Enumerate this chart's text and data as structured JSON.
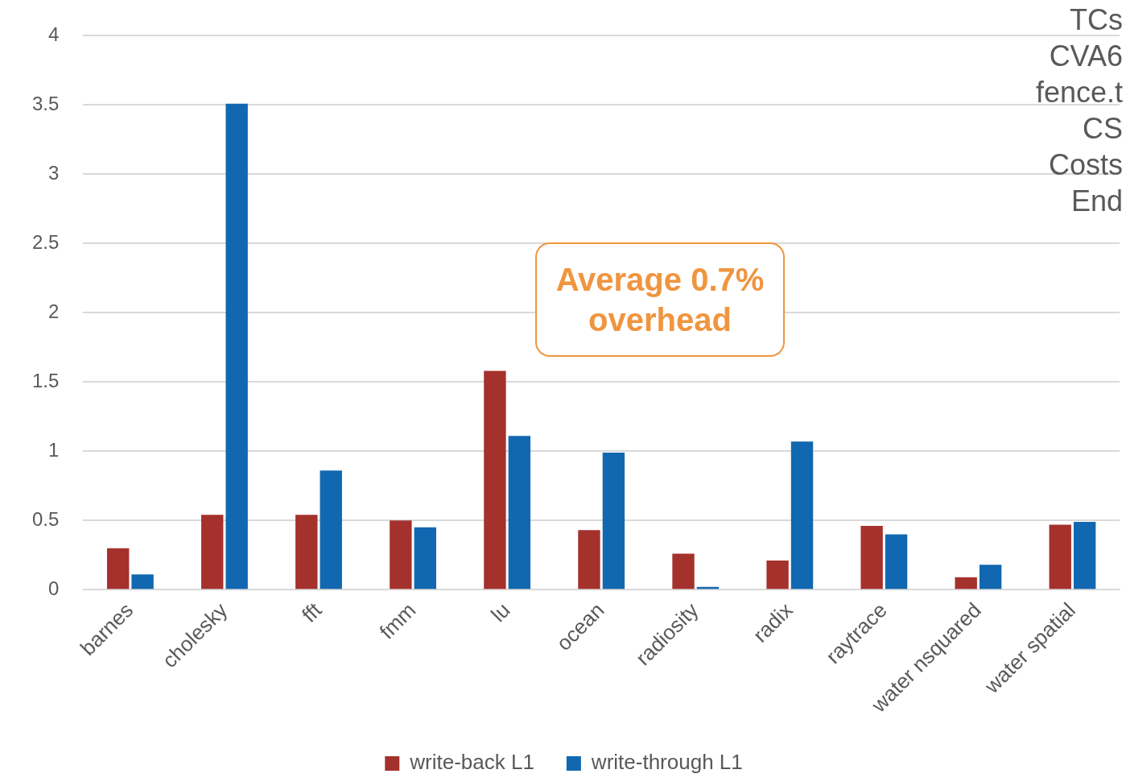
{
  "chart_data": {
    "type": "bar",
    "categories": [
      "barnes",
      "cholesky",
      "fft",
      "fmm",
      "lu",
      "ocean",
      "radiosity",
      "radix",
      "raytrace",
      "water nsquared",
      "water spatial"
    ],
    "series": [
      {
        "name": "write-back L1",
        "color": "#a5312d",
        "values": [
          0.3,
          0.54,
          0.54,
          0.5,
          1.58,
          0.43,
          0.26,
          0.21,
          0.46,
          0.09,
          0.47
        ]
      },
      {
        "name": "write-through L1",
        "color": "#1268b0",
        "values": [
          0.11,
          3.51,
          0.86,
          0.45,
          1.11,
          0.99,
          0.02,
          1.07,
          0.4,
          0.18,
          0.49
        ]
      }
    ],
    "ylim": [
      0,
      4
    ],
    "yticks": [
      0,
      0.5,
      1,
      1.5,
      2,
      2.5,
      3,
      3.5,
      4
    ],
    "grid": "y",
    "legend": "bottom",
    "annotations": [
      "Average 0.7% overhead",
      "TCs",
      "CVA6",
      "fence.t",
      "CS",
      "Costs",
      "End"
    ]
  }
}
